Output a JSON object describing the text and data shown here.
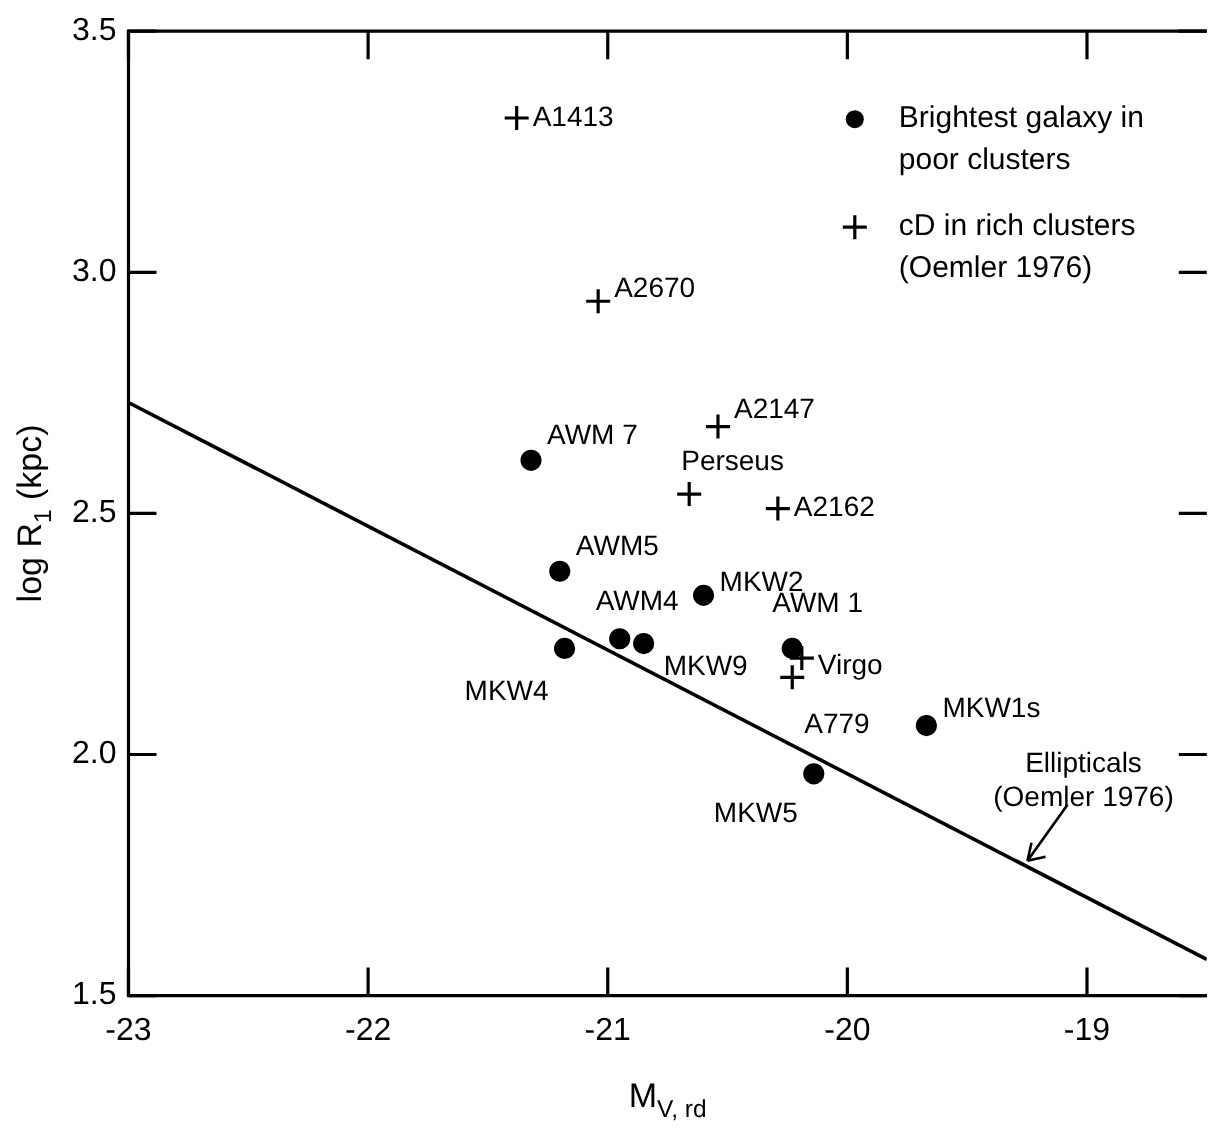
{
  "chart_data": {
    "type": "scatter",
    "xlabel": "M$_{V, rd}$",
    "ylabel": "log R$_{1}$ (kpc)",
    "xlim": [
      -23,
      -18.5
    ],
    "xticks": [
      -23,
      -22,
      -21,
      -20,
      -19
    ],
    "ylim": [
      1.5,
      3.5
    ],
    "yticks": [
      1.5,
      {
        "value": 2,
        "label": "2.0"
      },
      2.5,
      {
        "value": 3,
        "label": "3.0"
      },
      3.5
    ],
    "grid": false,
    "legend": "top right",
    "series": [
      {
        "name": "Brightest galaxy in poor clusters",
        "type": "scatter",
        "marker": "circle",
        "color": "#000000",
        "x": [
          -21.32,
          -21.2,
          -20.6,
          -20.95,
          -20.85,
          -21.18,
          -20.23,
          -19.67,
          -20.14
        ],
        "values": [
          2.61,
          2.38,
          2.33,
          2.24,
          2.23,
          2.22,
          2.22,
          2.06,
          1.96
        ]
      },
      {
        "name": "cD in rich clusters (Oemler 1976)",
        "type": "scatter",
        "marker": "cross",
        "color": "#000000",
        "x": [
          -21.38,
          -21.04,
          -20.54,
          -20.66,
          -20.29,
          -20.19,
          -20.23
        ],
        "values": [
          3.32,
          2.94,
          2.68,
          2.54,
          2.51,
          2.2,
          2.16
        ]
      },
      {
        "name": "Ellipticals (Oemler 1976)",
        "type": "line",
        "marker": "none",
        "line_style": "solid",
        "color": "#000000",
        "x": [
          -23,
          -18.5
        ],
        "values": [
          2.73,
          1.575
        ]
      }
    ],
    "annotations": [
      {
        "text": "AWM 7",
        "x": -21.32,
        "y": 2.61
      },
      {
        "text": "AWM5",
        "x": -21.2,
        "y": 2.38
      },
      {
        "text": "MKW2",
        "x": -20.6,
        "y": 2.33
      },
      {
        "text": "AWM4",
        "x": -20.95,
        "y": 2.24
      },
      {
        "text": "MKW9",
        "x": -20.85,
        "y": 2.23
      },
      {
        "text": "MKW4",
        "x": -21.18,
        "y": 2.22
      },
      {
        "text": "AWM 1",
        "x": -20.23,
        "y": 2.22
      },
      {
        "text": "MKW1s",
        "x": -19.67,
        "y": 2.06
      },
      {
        "text": "MKW5",
        "x": -20.14,
        "y": 1.96
      },
      {
        "text": "A1413",
        "x": -21.38,
        "y": 3.32
      },
      {
        "text": "A2670",
        "x": -21.04,
        "y": 2.94
      },
      {
        "text": "A2147",
        "x": -20.54,
        "y": 2.68
      },
      {
        "text": "Perseus",
        "x": -20.66,
        "y": 2.54
      },
      {
        "text": "A2162",
        "x": -20.29,
        "y": 2.51
      },
      {
        "text": "Virgo",
        "x": -20.19,
        "y": 2.2
      },
      {
        "text": "A779",
        "x": -20.23,
        "y": 2.16
      }
    ]
  }
}
